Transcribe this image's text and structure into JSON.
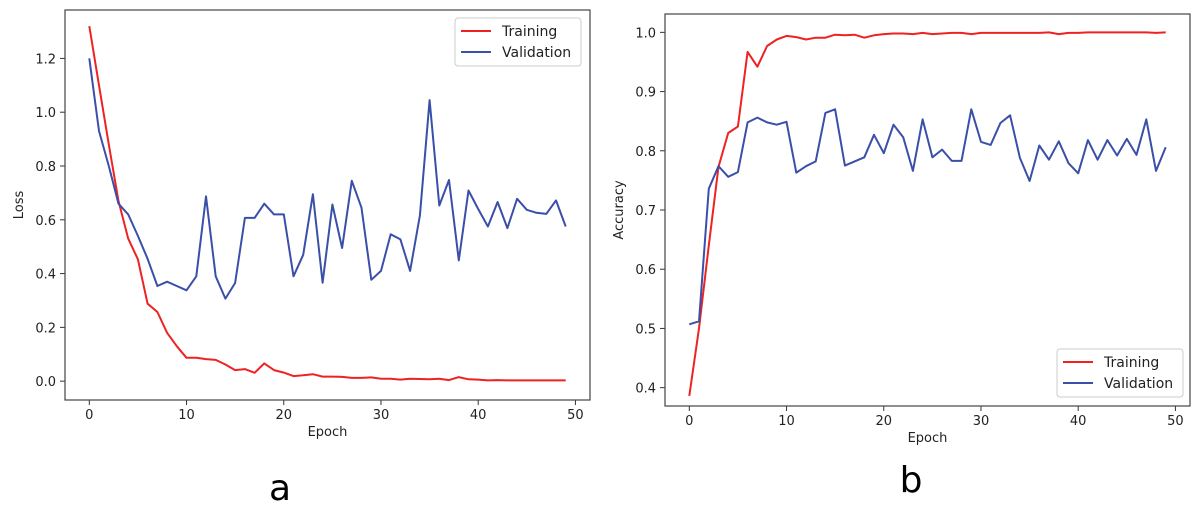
{
  "colors": {
    "training": "#ee2222",
    "validation": "#3a4fa8"
  },
  "chart_data": [
    {
      "type": "line",
      "panel_label": "a",
      "xlabel": "Epoch",
      "ylabel": "Loss",
      "xlim": [
        -2.5,
        51.5
      ],
      "ylim": [
        -0.07,
        1.38
      ],
      "xticks": [
        0,
        10,
        20,
        30,
        40,
        50
      ],
      "yticks": [
        0.0,
        0.2,
        0.4,
        0.6,
        0.8,
        1.0,
        1.2
      ],
      "yticklabels": [
        "0.0",
        "0.2",
        "0.4",
        "0.6",
        "0.8",
        "1.0",
        "1.2"
      ],
      "legend": "top-right",
      "series": [
        {
          "name": "Training",
          "values": [
            1.32,
            1.1,
            0.88,
            0.67,
            0.53,
            0.453,
            0.288,
            0.257,
            0.18,
            0.13,
            0.087,
            0.087,
            0.082,
            0.079,
            0.062,
            0.041,
            0.045,
            0.031,
            0.066,
            0.041,
            0.032,
            0.019,
            0.022,
            0.026,
            0.017,
            0.017,
            0.016,
            0.012,
            0.012,
            0.014,
            0.009,
            0.009,
            0.006,
            0.009,
            0.008,
            0.007,
            0.009,
            0.004,
            0.015,
            0.007,
            0.006,
            0.003,
            0.004,
            0.003,
            0.003,
            0.003,
            0.003,
            0.003,
            0.003,
            0.003
          ]
        },
        {
          "name": "Validation",
          "values": [
            1.2,
            0.93,
            0.8,
            0.66,
            0.62,
            0.54,
            0.455,
            0.354,
            0.37,
            0.354,
            0.338,
            0.39,
            0.687,
            0.39,
            0.307,
            0.365,
            0.607,
            0.607,
            0.66,
            0.62,
            0.62,
            0.39,
            0.47,
            0.695,
            0.366,
            0.657,
            0.495,
            0.745,
            0.645,
            0.377,
            0.41,
            0.546,
            0.527,
            0.41,
            0.616,
            1.045,
            0.653,
            0.748,
            0.449,
            0.709,
            0.64,
            0.575,
            0.666,
            0.569,
            0.678,
            0.637,
            0.626,
            0.622,
            0.672,
            0.575
          ]
        }
      ]
    },
    {
      "type": "line",
      "panel_label": "b",
      "xlabel": "Epoch",
      "ylabel": "Accuracy",
      "xlim": [
        -2.5,
        51.5
      ],
      "ylim": [
        0.369,
        1.031
      ],
      "xticks": [
        0,
        10,
        20,
        30,
        40,
        50
      ],
      "yticks": [
        0.4,
        0.5,
        0.6,
        0.7,
        0.8,
        0.9,
        1.0
      ],
      "yticklabels": [
        "0.4",
        "0.5",
        "0.6",
        "0.7",
        "0.8",
        "0.9",
        "1.0"
      ],
      "legend": "bottom-right",
      "series": [
        {
          "name": "Training",
          "values": [
            0.386,
            0.5,
            0.64,
            0.773,
            0.83,
            0.841,
            0.967,
            0.942,
            0.977,
            0.988,
            0.994,
            0.992,
            0.988,
            0.991,
            0.991,
            0.996,
            0.995,
            0.996,
            0.991,
            0.995,
            0.997,
            0.998,
            0.998,
            0.997,
            0.999,
            0.997,
            0.998,
            0.999,
            0.999,
            0.997,
            0.999,
            0.999,
            0.999,
            0.999,
            0.999,
            0.999,
            0.999,
            1.0,
            0.997,
            0.999,
            0.999,
            1.0,
            1.0,
            1.0,
            1.0,
            1.0,
            1.0,
            1.0,
            0.999,
            1.0
          ]
        },
        {
          "name": "Validation",
          "values": [
            0.507,
            0.512,
            0.736,
            0.774,
            0.756,
            0.764,
            0.848,
            0.856,
            0.848,
            0.844,
            0.849,
            0.763,
            0.774,
            0.782,
            0.864,
            0.87,
            0.775,
            0.782,
            0.789,
            0.827,
            0.796,
            0.844,
            0.823,
            0.766,
            0.853,
            0.789,
            0.802,
            0.783,
            0.783,
            0.87,
            0.815,
            0.81,
            0.847,
            0.86,
            0.788,
            0.749,
            0.809,
            0.785,
            0.816,
            0.779,
            0.762,
            0.818,
            0.785,
            0.818,
            0.792,
            0.82,
            0.793,
            0.853,
            0.766,
            0.806
          ]
        }
      ]
    }
  ]
}
